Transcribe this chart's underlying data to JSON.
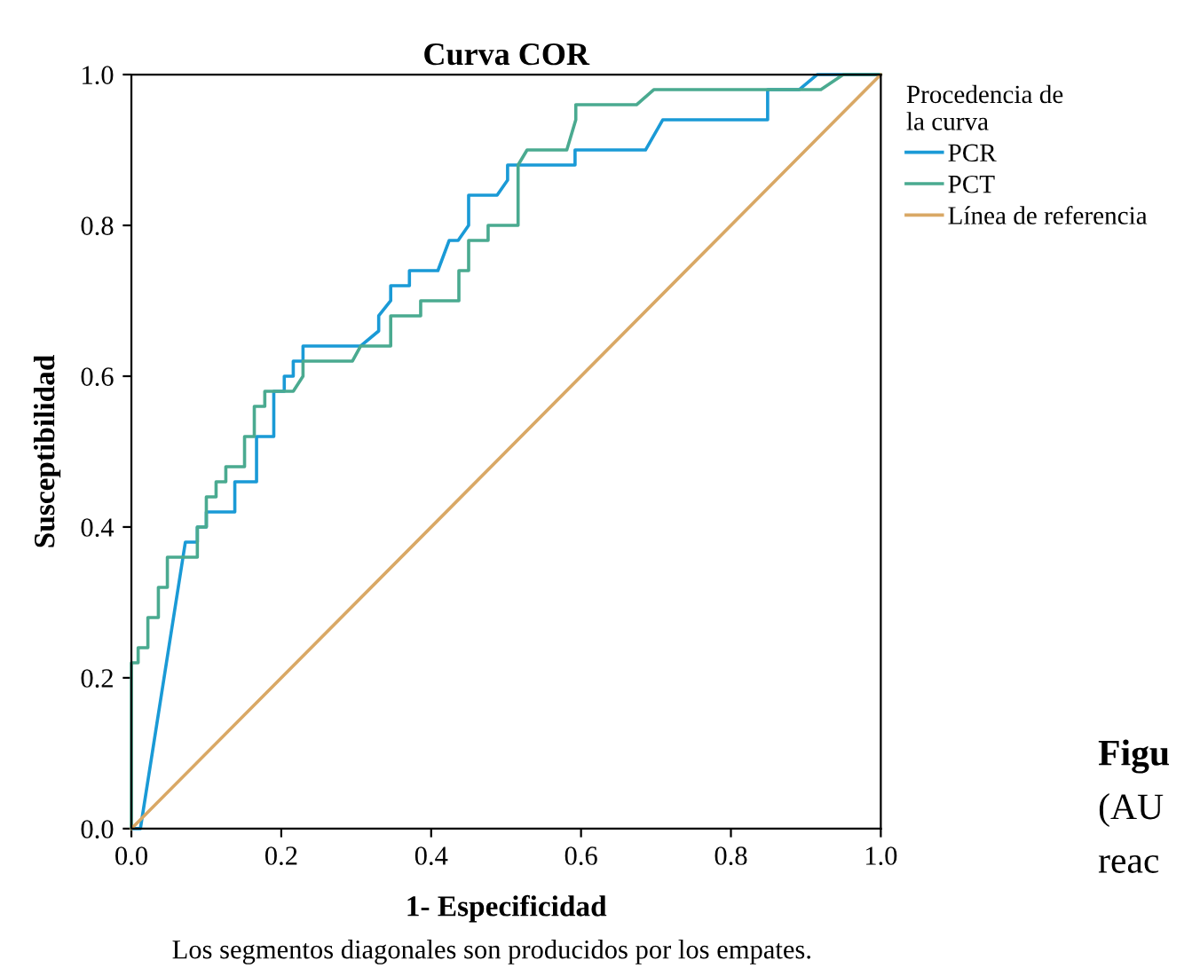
{
  "chart_data": {
    "type": "line",
    "title": "Curva COR",
    "xlabel": "1- Especificidad",
    "ylabel": "Susceptibilidad",
    "legend_title": "Procedencia de\nla curva",
    "legend": "top right",
    "grid": false,
    "xlim": [
      0,
      1
    ],
    "ylim": [
      0,
      1
    ],
    "xticks": [
      {
        "value": 0,
        "label": "0.0"
      },
      {
        "value": 0.2,
        "label": "0.2"
      },
      {
        "value": 0.4,
        "label": "0.4"
      },
      {
        "value": 0.6,
        "label": "0.6"
      },
      {
        "value": 0.8,
        "label": "0.8"
      },
      {
        "value": 1,
        "label": "1.0"
      }
    ],
    "yticks": [
      {
        "value": 0,
        "label": "0.0"
      },
      {
        "value": 0.2,
        "label": "0.2"
      },
      {
        "value": 0.4,
        "label": "0.4"
      },
      {
        "value": 0.6,
        "label": "0.6"
      },
      {
        "value": 0.8,
        "label": "0.8"
      },
      {
        "value": 1,
        "label": "1.0"
      }
    ],
    "series": [
      {
        "name": "PCR",
        "color": "#1a9ad6",
        "x": [
          0,
          0.012,
          0.072,
          0.088,
          0.088,
          0.1,
          0.1,
          0.138,
          0.138,
          0.167,
          0.167,
          0.19,
          0.19,
          0.204,
          0.204,
          0.216,
          0.216,
          0.229,
          0.229,
          0.306,
          0.33,
          0.33,
          0.346,
          0.346,
          0.371,
          0.371,
          0.409,
          0.424,
          0.436,
          0.45,
          0.45,
          0.488,
          0.502,
          0.502,
          0.592,
          0.592,
          0.686,
          0.709,
          0.849,
          0.849,
          0.891,
          0.915,
          1
        ],
        "values": [
          0,
          0,
          0.38,
          0.38,
          0.4,
          0.4,
          0.42,
          0.42,
          0.46,
          0.46,
          0.52,
          0.52,
          0.58,
          0.58,
          0.6,
          0.6,
          0.62,
          0.62,
          0.64,
          0.64,
          0.66,
          0.68,
          0.7,
          0.72,
          0.72,
          0.74,
          0.74,
          0.78,
          0.78,
          0.8,
          0.84,
          0.84,
          0.86,
          0.88,
          0.88,
          0.9,
          0.9,
          0.94,
          0.94,
          0.98,
          0.98,
          1,
          1
        ]
      },
      {
        "name": "PCT",
        "color": "#4aaa90",
        "x": [
          0,
          0,
          0.009,
          0.009,
          0.022,
          0.022,
          0.036,
          0.036,
          0.048,
          0.048,
          0.088,
          0.088,
          0.1,
          0.1,
          0.113,
          0.113,
          0.126,
          0.126,
          0.151,
          0.151,
          0.164,
          0.164,
          0.178,
          0.178,
          0.216,
          0.229,
          0.229,
          0.295,
          0.306,
          0.346,
          0.346,
          0.386,
          0.386,
          0.437,
          0.437,
          0.45,
          0.45,
          0.476,
          0.476,
          0.516,
          0.516,
          0.528,
          0.581,
          0.593,
          0.593,
          0.674,
          0.697,
          0.92,
          0.95,
          1
        ],
        "values": [
          0,
          0.22,
          0.22,
          0.24,
          0.24,
          0.28,
          0.28,
          0.32,
          0.32,
          0.36,
          0.36,
          0.4,
          0.4,
          0.44,
          0.44,
          0.46,
          0.46,
          0.48,
          0.48,
          0.52,
          0.52,
          0.56,
          0.56,
          0.58,
          0.58,
          0.6,
          0.62,
          0.62,
          0.64,
          0.64,
          0.68,
          0.68,
          0.7,
          0.7,
          0.74,
          0.74,
          0.78,
          0.78,
          0.8,
          0.8,
          0.88,
          0.9,
          0.9,
          0.94,
          0.96,
          0.96,
          0.98,
          0.98,
          1,
          1
        ]
      },
      {
        "name": "Línea de referencia",
        "color": "#d9a865",
        "x": [
          0,
          1
        ],
        "values": [
          0,
          1
        ]
      }
    ],
    "annotations": [
      "Los segmentos diagonales son producidos por los empates.",
      "Figu",
      "(AU",
      "reac"
    ]
  }
}
